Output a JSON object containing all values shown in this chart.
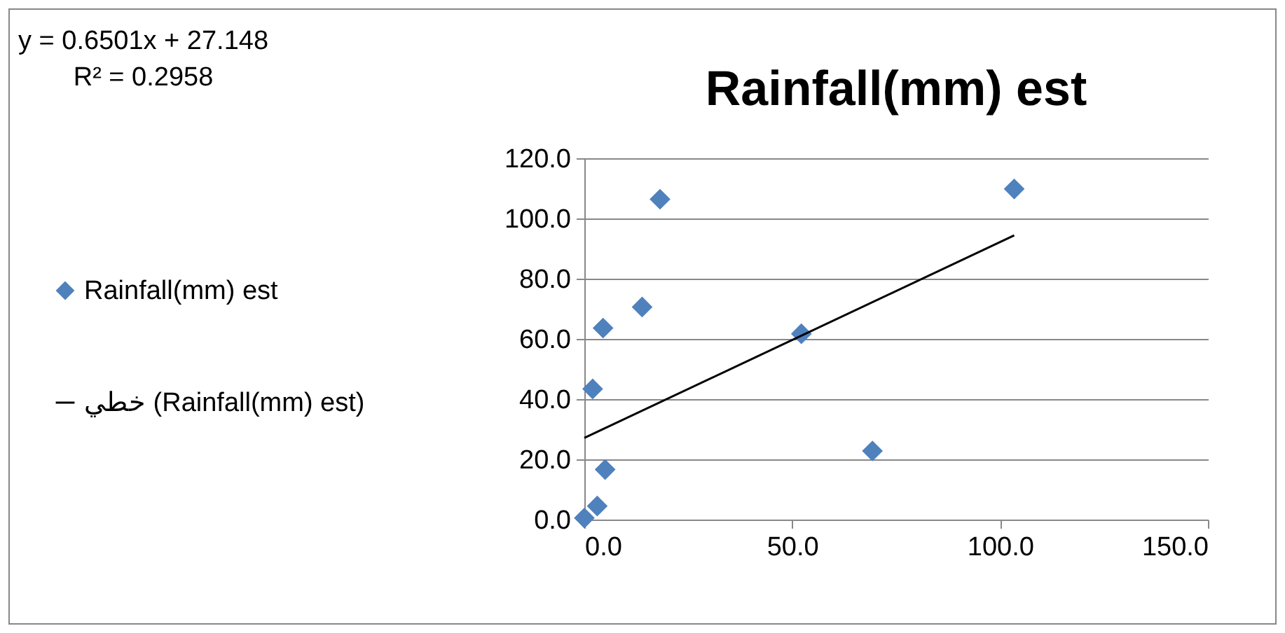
{
  "chart_data": {
    "type": "scatter",
    "title": "Rainfall(mm) est",
    "annotations": [
      "y = 0.6501x + 27.148",
      "R² = 0.2958"
    ],
    "series": [
      {
        "name": "Rainfall(mm) est",
        "color": "#4f81bd",
        "marker": "diamond",
        "x": [
          103.4,
          18.2,
          13.9,
          4.5,
          52.2,
          2.0,
          69.3,
          5.0,
          3.1,
          0.0
        ],
        "values": [
          109.8,
          106.4,
          70.6,
          63.6,
          61.7,
          43.4,
          22.8,
          16.6,
          4.5,
          0.5
        ]
      },
      {
        "name": "خطي (Rainfall(mm) est)",
        "type": "line",
        "color": "#000000",
        "line_style": "solid",
        "x": [
          0,
          103.4
        ],
        "values": [
          27.1,
          94.4
        ]
      }
    ],
    "xlim": [
      0,
      150
    ],
    "xticks": [
      {
        "value": 0,
        "label": "0.0"
      },
      {
        "value": 50,
        "label": "50.0"
      },
      {
        "value": 100,
        "label": "100.0"
      },
      {
        "value": 150,
        "label": "150.0"
      }
    ],
    "ylim": [
      0,
      120
    ],
    "yticks": [
      {
        "value": 0,
        "label": "0.0"
      },
      {
        "value": 20,
        "label": "20.0"
      },
      {
        "value": 40,
        "label": "40.0"
      },
      {
        "value": 60,
        "label": "60.0"
      },
      {
        "value": 80,
        "label": "80.0"
      },
      {
        "value": 100,
        "label": "100.0"
      },
      {
        "value": 120,
        "label": "120.0"
      }
    ],
    "grid": "y",
    "legend": "left"
  }
}
